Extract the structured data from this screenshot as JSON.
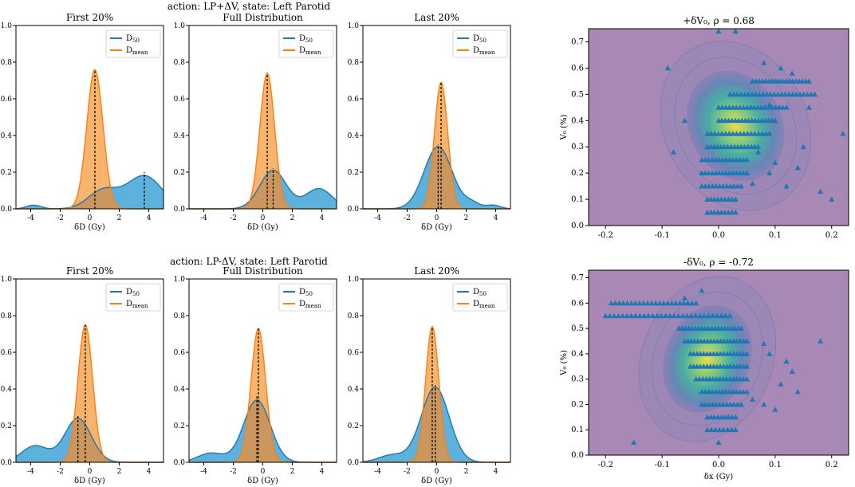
{
  "figure": {
    "row_titles": [
      "action: LP+ΔV,  state: Left Parotid",
      "action: LP-ΔV,  state: Left Parotid"
    ],
    "panel_titles": [
      "First 20%",
      "Full Distribution",
      "Last 20%"
    ],
    "xlabel": "δD (Gy)",
    "legend": {
      "d50_base": "D",
      "d50_sub": "50",
      "dmean_base": "D",
      "dmean_sub": "mean"
    },
    "x_ticks": [
      -4,
      -2,
      0,
      2,
      4
    ],
    "y_ticks": [
      0.0,
      0.2,
      0.4,
      0.6,
      0.8,
      1.0
    ],
    "scatter_titles": [
      "+δV₀, ρ = 0.68",
      "-δV₀, ρ = -0.72"
    ],
    "scatter_xlabel": "δx (Gy)",
    "scatter_ylabel": "V₀ (%)",
    "scatter_x_ticks": [
      -0.2,
      -0.1,
      0.0,
      0.1,
      0.2
    ],
    "scatter_y_ticks": [
      0.0,
      0.1,
      0.2,
      0.3,
      0.4,
      0.5,
      0.6,
      0.7
    ]
  },
  "colors": {
    "d50": "#1f77b4",
    "d50_fill": "#3fa4d6",
    "dmean": "#ff7f0e",
    "dmean_fill": "#f7a654",
    "overlap": "#c9955e",
    "scatter_bg": "#a889b6",
    "marker": "#1f77b4"
  },
  "chart_data": [
    {
      "type": "area",
      "row": 0,
      "col": 0,
      "title": "First 20%",
      "xlim": [
        -5,
        5
      ],
      "ylim": [
        0,
        1.0
      ],
      "series": [
        {
          "name": "D50",
          "components": [
            {
              "mu": 3.7,
              "sigma": 1.2,
              "amp": 0.18
            },
            {
              "mu": 0.9,
              "sigma": 1.0,
              "amp": 0.1
            },
            {
              "mu": -3.8,
              "sigma": 0.5,
              "amp": 0.02
            }
          ],
          "median": 3.7,
          "median_height": 0.2
        },
        {
          "name": "Dmean",
          "components": [
            {
              "mu": 0.35,
              "sigma": 0.55,
              "amp": 0.76
            }
          ],
          "median": 0.35,
          "median_height": 0.76
        }
      ]
    },
    {
      "type": "area",
      "row": 0,
      "col": 1,
      "title": "Full Distribution",
      "xlim": [
        -5,
        5
      ],
      "ylim": [
        0,
        1.0
      ],
      "series": [
        {
          "name": "D50",
          "components": [
            {
              "mu": 0.7,
              "sigma": 0.9,
              "amp": 0.21
            },
            {
              "mu": 3.8,
              "sigma": 0.9,
              "amp": 0.11
            }
          ],
          "median": 0.7,
          "median_height": 0.22
        },
        {
          "name": "Dmean",
          "components": [
            {
              "mu": 0.3,
              "sigma": 0.5,
              "amp": 0.74
            }
          ],
          "median": 0.3,
          "median_height": 0.74
        }
      ]
    },
    {
      "type": "area",
      "row": 0,
      "col": 2,
      "title": "Last 20%",
      "xlim": [
        -5,
        5
      ],
      "ylim": [
        0,
        1.0
      ],
      "series": [
        {
          "name": "D50",
          "components": [
            {
              "mu": 0.1,
              "sigma": 0.95,
              "amp": 0.34
            },
            {
              "mu": 2.4,
              "sigma": 0.5,
              "amp": 0.03
            },
            {
              "mu": 3.8,
              "sigma": 0.5,
              "amp": 0.02
            }
          ],
          "median": 0.1,
          "median_height": 0.35
        },
        {
          "name": "Dmean",
          "components": [
            {
              "mu": 0.3,
              "sigma": 0.45,
              "amp": 0.69
            }
          ],
          "median": 0.3,
          "median_height": 0.69
        }
      ]
    },
    {
      "type": "area",
      "row": 1,
      "col": 0,
      "title": "First 20%",
      "xlim": [
        -5,
        5
      ],
      "ylim": [
        0,
        1.0
      ],
      "series": [
        {
          "name": "D50",
          "components": [
            {
              "mu": -0.8,
              "sigma": 0.9,
              "amp": 0.24
            },
            {
              "mu": -3.7,
              "sigma": 0.9,
              "amp": 0.09
            }
          ],
          "median": -0.8,
          "median_height": 0.26
        },
        {
          "name": "Dmean",
          "components": [
            {
              "mu": -0.3,
              "sigma": 0.5,
              "amp": 0.75
            }
          ],
          "median": -0.3,
          "median_height": 0.75
        }
      ]
    },
    {
      "type": "area",
      "row": 1,
      "col": 1,
      "title": "Full Distribution",
      "xlim": [
        -5,
        5
      ],
      "ylim": [
        0,
        1.0
      ],
      "series": [
        {
          "name": "D50",
          "components": [
            {
              "mu": -0.4,
              "sigma": 0.9,
              "amp": 0.34
            },
            {
              "mu": -3.5,
              "sigma": 0.9,
              "amp": 0.05
            }
          ],
          "median": -0.4,
          "median_height": 0.36
        },
        {
          "name": "Dmean",
          "components": [
            {
              "mu": -0.3,
              "sigma": 0.5,
              "amp": 0.73
            }
          ],
          "median": -0.3,
          "median_height": 0.73
        }
      ]
    },
    {
      "type": "area",
      "row": 1,
      "col": 2,
      "title": "Last 20%",
      "xlim": [
        -5,
        5
      ],
      "ylim": [
        0,
        1.0
      ],
      "series": [
        {
          "name": "D50",
          "components": [
            {
              "mu": -0.1,
              "sigma": 0.95,
              "amp": 0.41
            },
            {
              "mu": -3.0,
              "sigma": 0.9,
              "amp": 0.04
            }
          ],
          "median": -0.1,
          "median_height": 0.42
        },
        {
          "name": "Dmean",
          "components": [
            {
              "mu": -0.3,
              "sigma": 0.45,
              "amp": 0.74
            }
          ],
          "median": -0.3,
          "median_height": 0.74
        }
      ]
    },
    {
      "type": "scatter",
      "title": "+δV₀, ρ = 0.68",
      "xlabel": "δx (Gy)",
      "ylabel": "V₀ (%)",
      "xlim": [
        -0.23,
        0.23
      ],
      "ylim": [
        0.0,
        0.75
      ],
      "rows": [
        {
          "y": 0.05,
          "x0": -0.02,
          "x1": 0.03,
          "n": 9
        },
        {
          "y": 0.1,
          "x0": -0.02,
          "x1": 0.03,
          "n": 9
        },
        {
          "y": 0.15,
          "x0": -0.03,
          "x1": 0.04,
          "n": 12
        },
        {
          "y": 0.2,
          "x0": -0.03,
          "x1": 0.05,
          "n": 14
        },
        {
          "y": 0.25,
          "x0": -0.03,
          "x1": 0.05,
          "n": 14
        },
        {
          "y": 0.3,
          "x0": -0.02,
          "x1": 0.07,
          "n": 16
        },
        {
          "y": 0.35,
          "x0": -0.02,
          "x1": 0.09,
          "n": 18
        },
        {
          "y": 0.4,
          "x0": 0.0,
          "x1": 0.1,
          "n": 18
        },
        {
          "y": 0.45,
          "x0": 0.0,
          "x1": 0.12,
          "n": 20
        },
        {
          "y": 0.5,
          "x0": 0.02,
          "x1": 0.17,
          "n": 24
        },
        {
          "y": 0.55,
          "x0": 0.06,
          "x1": 0.16,
          "n": 18
        }
      ],
      "extra": [
        [
          -0.09,
          0.6
        ],
        [
          -0.06,
          0.4
        ],
        [
          -0.08,
          0.28
        ],
        [
          0.08,
          0.62
        ],
        [
          0.11,
          0.6
        ],
        [
          0.13,
          0.58
        ],
        [
          0.16,
          0.45
        ],
        [
          0.22,
          0.35
        ],
        [
          0.15,
          0.3
        ],
        [
          0.2,
          0.1
        ],
        [
          0.12,
          0.15
        ],
        [
          0.18,
          0.13
        ],
        [
          0.09,
          0.2
        ],
        [
          0.1,
          0.24
        ],
        [
          0.07,
          0.28
        ],
        [
          0.0,
          0.74
        ],
        [
          0.03,
          0.74
        ],
        [
          0.09,
          0.46
        ],
        [
          0.06,
          0.16
        ],
        [
          0.14,
          0.22
        ]
      ],
      "kde": {
        "cx": 0.03,
        "cy": 0.38,
        "sx": 0.06,
        "sy": 0.16,
        "rot": -28
      }
    },
    {
      "type": "scatter",
      "title": "-δV₀, ρ = -0.72",
      "xlabel": "δx (Gy)",
      "ylabel": "V₀ (%)",
      "xlim": [
        -0.23,
        0.23
      ],
      "ylim": [
        0.0,
        0.73
      ],
      "rows": [
        {
          "y": 0.1,
          "x0": -0.02,
          "x1": 0.03,
          "n": 8
        },
        {
          "y": 0.15,
          "x0": -0.02,
          "x1": 0.03,
          "n": 9
        },
        {
          "y": 0.2,
          "x0": -0.03,
          "x1": 0.04,
          "n": 12
        },
        {
          "y": 0.25,
          "x0": -0.03,
          "x1": 0.05,
          "n": 14
        },
        {
          "y": 0.3,
          "x0": -0.04,
          "x1": 0.05,
          "n": 16
        },
        {
          "y": 0.35,
          "x0": -0.05,
          "x1": 0.05,
          "n": 18
        },
        {
          "y": 0.4,
          "x0": -0.05,
          "x1": 0.05,
          "n": 18
        },
        {
          "y": 0.45,
          "x0": -0.06,
          "x1": 0.05,
          "n": 20
        },
        {
          "y": 0.5,
          "x0": -0.07,
          "x1": 0.04,
          "n": 20
        },
        {
          "y": 0.55,
          "x0": -0.2,
          "x1": 0.02,
          "n": 30
        },
        {
          "y": 0.6,
          "x0": -0.19,
          "x1": -0.04,
          "n": 22
        }
      ],
      "extra": [
        [
          -0.15,
          0.05
        ],
        [
          -0.06,
          0.62
        ],
        [
          0.08,
          0.44
        ],
        [
          0.09,
          0.4
        ],
        [
          0.12,
          0.37
        ],
        [
          0.13,
          0.33
        ],
        [
          0.11,
          0.28
        ],
        [
          0.14,
          0.25
        ],
        [
          0.18,
          0.45
        ],
        [
          0.08,
          0.2
        ],
        [
          0.1,
          0.18
        ],
        [
          0.0,
          0.05
        ],
        [
          -0.03,
          0.65
        ],
        [
          0.06,
          0.22
        ]
      ],
      "kde": {
        "cx": -0.02,
        "cy": 0.38,
        "sx": 0.055,
        "sy": 0.16,
        "rot": 22
      }
    }
  ]
}
